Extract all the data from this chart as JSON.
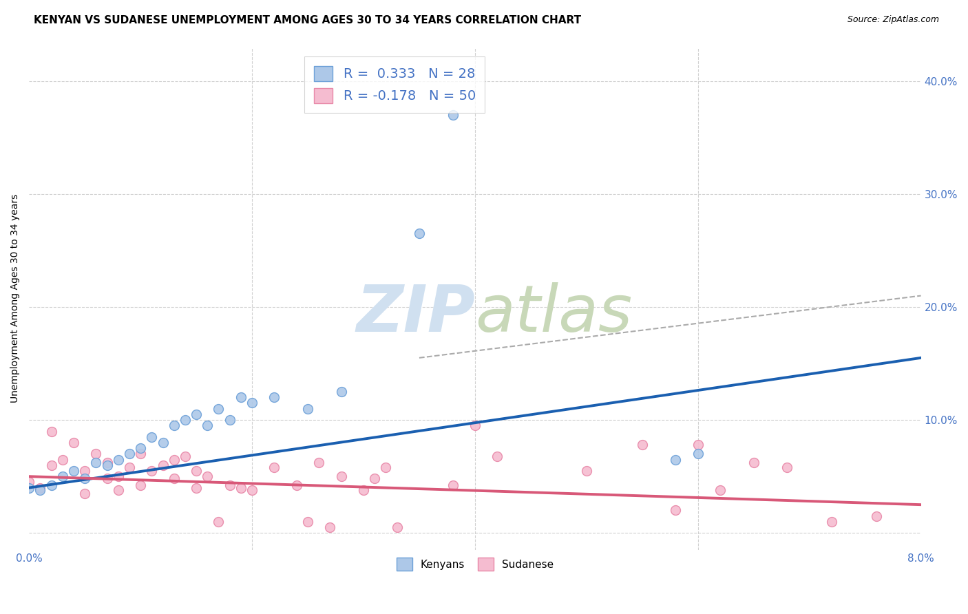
{
  "title": "KENYAN VS SUDANESE UNEMPLOYMENT AMONG AGES 30 TO 34 YEARS CORRELATION CHART",
  "source": "Source: ZipAtlas.com",
  "ylabel": "Unemployment Among Ages 30 to 34 years",
  "xlim": [
    0.0,
    0.08
  ],
  "ylim": [
    -0.015,
    0.43
  ],
  "xticks": [
    0.0,
    0.02,
    0.04,
    0.06,
    0.08
  ],
  "xtick_labels": [
    "0.0%",
    "",
    "",
    "",
    "8.0%"
  ],
  "yticks": [
    0.0,
    0.1,
    0.2,
    0.3,
    0.4
  ],
  "ytick_labels_right": [
    "",
    "10.0%",
    "20.0%",
    "30.0%",
    "40.0%"
  ],
  "kenyan_color": "#adc8e8",
  "kenyan_edge_color": "#6ca0d8",
  "sudanese_color": "#f5bcd0",
  "sudanese_edge_color": "#e888a8",
  "kenyan_line_color": "#1a5fb0",
  "sudanese_line_color": "#d85878",
  "watermark_zip_color": "#d0e0f0",
  "watermark_atlas_color": "#c8d8b8",
  "legend_kenyan_label": "R =  0.333   N = 28",
  "legend_sudanese_label": "R = -0.178   N = 50",
  "bottom_legend_kenyan": "Kenyans",
  "bottom_legend_sudanese": "Sudanese",
  "kenyan_scatter_x": [
    0.0,
    0.001,
    0.002,
    0.003,
    0.004,
    0.005,
    0.006,
    0.007,
    0.008,
    0.009,
    0.01,
    0.011,
    0.012,
    0.013,
    0.014,
    0.015,
    0.016,
    0.017,
    0.018,
    0.019,
    0.02,
    0.022,
    0.025,
    0.028,
    0.035,
    0.038,
    0.058,
    0.06
  ],
  "kenyan_scatter_y": [
    0.04,
    0.038,
    0.042,
    0.05,
    0.055,
    0.048,
    0.062,
    0.06,
    0.065,
    0.07,
    0.075,
    0.085,
    0.08,
    0.095,
    0.1,
    0.105,
    0.095,
    0.11,
    0.1,
    0.12,
    0.115,
    0.12,
    0.11,
    0.125,
    0.265,
    0.37,
    0.065,
    0.07
  ],
  "sudanese_scatter_x": [
    0.0,
    0.001,
    0.002,
    0.002,
    0.003,
    0.004,
    0.005,
    0.005,
    0.006,
    0.007,
    0.007,
    0.008,
    0.008,
    0.009,
    0.01,
    0.01,
    0.011,
    0.012,
    0.013,
    0.013,
    0.014,
    0.015,
    0.015,
    0.016,
    0.017,
    0.018,
    0.019,
    0.02,
    0.022,
    0.024,
    0.025,
    0.026,
    0.027,
    0.028,
    0.03,
    0.031,
    0.032,
    0.033,
    0.038,
    0.04,
    0.042,
    0.05,
    0.055,
    0.058,
    0.06,
    0.062,
    0.065,
    0.068,
    0.072,
    0.076
  ],
  "sudanese_scatter_y": [
    0.045,
    0.04,
    0.09,
    0.06,
    0.065,
    0.08,
    0.035,
    0.055,
    0.07,
    0.048,
    0.062,
    0.038,
    0.05,
    0.058,
    0.07,
    0.042,
    0.055,
    0.06,
    0.048,
    0.065,
    0.068,
    0.04,
    0.055,
    0.05,
    0.01,
    0.042,
    0.04,
    0.038,
    0.058,
    0.042,
    0.01,
    0.062,
    0.005,
    0.05,
    0.038,
    0.048,
    0.058,
    0.005,
    0.042,
    0.095,
    0.068,
    0.055,
    0.078,
    0.02,
    0.078,
    0.038,
    0.062,
    0.058,
    0.01,
    0.015
  ],
  "kenyan_trend_x": [
    0.0,
    0.08
  ],
  "kenyan_trend_y": [
    0.04,
    0.155
  ],
  "sudanese_trend_x": [
    0.0,
    0.08
  ],
  "sudanese_trend_y": [
    0.05,
    0.025
  ],
  "dashed_line_x": [
    0.035,
    0.08
  ],
  "dashed_line_y": [
    0.155,
    0.21
  ],
  "background_color": "#ffffff",
  "grid_color": "#d0d0d0",
  "title_fontsize": 11,
  "axis_label_fontsize": 10,
  "tick_fontsize": 11,
  "marker_size": 100
}
